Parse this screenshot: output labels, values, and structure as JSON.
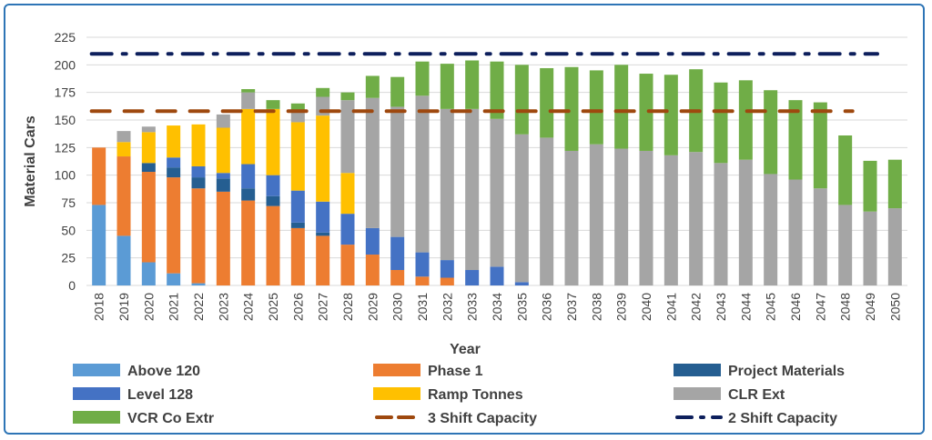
{
  "chart_data": {
    "type": "bar",
    "stacked": true,
    "title": "",
    "xlabel": "Year",
    "ylabel": "Material Cars",
    "ylim": [
      0,
      225
    ],
    "yticks": [
      0,
      25,
      50,
      75,
      100,
      125,
      150,
      175,
      200,
      225
    ],
    "grid": true,
    "legend_placement": "bottom",
    "categories": [
      "2018",
      "2019",
      "2020",
      "2021",
      "2022",
      "2023",
      "2024",
      "2025",
      "2026",
      "2027",
      "2028",
      "2029",
      "2030",
      "2031",
      "2032",
      "2033",
      "2034",
      "2035",
      "2036",
      "2037",
      "2038",
      "2039",
      "2040",
      "2041",
      "2042",
      "2043",
      "2044",
      "2045",
      "2046",
      "2047",
      "2048",
      "2049",
      "2050"
    ],
    "series": [
      {
        "name": "Above 120",
        "color": "#5b9bd5",
        "values": [
          73,
          45,
          21,
          11,
          2,
          0,
          0,
          0,
          0,
          0,
          0,
          0,
          0,
          0,
          0,
          0,
          0,
          0,
          0,
          0,
          0,
          0,
          0,
          0,
          0,
          0,
          0,
          0,
          0,
          0,
          0,
          0,
          0
        ]
      },
      {
        "name": "Phase 1",
        "color": "#ed7d31",
        "values": [
          52,
          72,
          82,
          87,
          86,
          85,
          77,
          72,
          52,
          45,
          37,
          28,
          14,
          8,
          7,
          0,
          0,
          0,
          0,
          0,
          0,
          0,
          0,
          0,
          0,
          0,
          0,
          0,
          0,
          0,
          0,
          0,
          0
        ]
      },
      {
        "name": "Project Materials",
        "color": "#255e91",
        "values": [
          0,
          0,
          8,
          9,
          10,
          12,
          11,
          9,
          5,
          3,
          0,
          0,
          0,
          0,
          0,
          0,
          0,
          0,
          0,
          0,
          0,
          0,
          0,
          0,
          0,
          0,
          0,
          0,
          0,
          0,
          0,
          0,
          0
        ]
      },
      {
        "name": "Level 128",
        "color": "#4472c4",
        "values": [
          0,
          0,
          0,
          9,
          10,
          5,
          22,
          19,
          29,
          28,
          28,
          24,
          30,
          22,
          16,
          14,
          17,
          3,
          0,
          0,
          0,
          0,
          0,
          0,
          0,
          0,
          0,
          0,
          0,
          0,
          0,
          0,
          0
        ]
      },
      {
        "name": "Ramp Tonnes",
        "color": "#ffc000",
        "values": [
          0,
          13,
          28,
          29,
          38,
          41,
          50,
          60,
          62,
          78,
          37,
          0,
          0,
          0,
          0,
          0,
          0,
          0,
          0,
          0,
          0,
          0,
          0,
          0,
          0,
          0,
          0,
          0,
          0,
          0,
          0,
          0,
          0
        ]
      },
      {
        "name": "CLR Ext",
        "color": "#a5a5a5",
        "values": [
          0,
          10,
          5,
          0,
          0,
          12,
          15,
          0,
          10,
          17,
          66,
          118,
          118,
          142,
          137,
          146,
          134,
          134,
          134,
          122,
          128,
          124,
          122,
          118,
          121,
          111,
          114,
          101,
          96,
          88,
          73,
          67,
          70
        ]
      },
      {
        "name": "VCR Co Extr",
        "color": "#70ad47",
        "values": [
          0,
          0,
          0,
          0,
          0,
          0,
          3,
          8,
          7,
          8,
          7,
          20,
          27,
          31,
          41,
          44,
          52,
          63,
          63,
          76,
          67,
          76,
          70,
          73,
          75,
          73,
          72,
          76,
          72,
          78,
          63,
          46,
          44
        ]
      }
    ],
    "lines": [
      {
        "name": "3 Shift Capacity",
        "color": "#9e480e",
        "style": "dashed",
        "value": 158,
        "from": "2018",
        "to": "2048"
      },
      {
        "name": "2 Shift Capacity",
        "color": "#0d1f5c",
        "style": "dash-dot",
        "value": 210,
        "from": "2018",
        "to": "2049"
      }
    ]
  }
}
